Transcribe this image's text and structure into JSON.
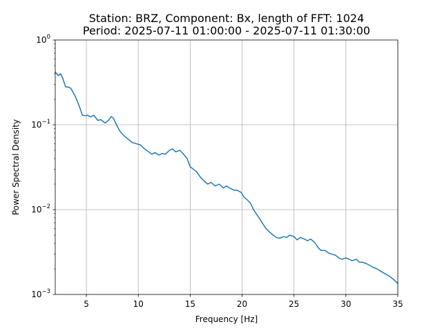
{
  "chart_data": {
    "type": "line",
    "title": [
      "Station: BRZ, Component: Bx, length of FFT: 1024",
      "Period: 2025-07-11 01:00:00 - 2025-07-11 01:30:00"
    ],
    "xlabel": "Frequency [Hz]",
    "ylabel": "Power Spectral Density",
    "xlim": [
      2.0,
      35.0
    ],
    "ylim": [
      0.001,
      1.0
    ],
    "yscale": "log",
    "grid": true,
    "line_color": "#1f77b4",
    "xticks": [
      5,
      10,
      15,
      20,
      25,
      30,
      35
    ],
    "yticks": [
      {
        "value": 0.001,
        "base": "10",
        "exp": "−3"
      },
      {
        "value": 0.01,
        "base": "10",
        "exp": "−2"
      },
      {
        "value": 0.1,
        "base": "10",
        "exp": "−1"
      },
      {
        "value": 1.0,
        "base": "10",
        "exp": "0"
      }
    ],
    "series": [
      {
        "x": [
          2.0,
          2.3,
          2.5,
          2.7,
          3.0,
          3.2,
          3.5,
          3.9,
          4.2,
          4.4,
          4.6,
          4.9,
          5.1,
          5.4,
          5.7,
          6.1,
          6.4,
          6.8,
          7.1,
          7.4,
          7.6,
          7.9,
          8.2,
          8.6,
          9.0,
          9.4,
          9.8,
          10.2,
          10.6,
          11.0,
          11.3,
          11.6,
          12.0,
          12.3,
          12.6,
          13.0,
          13.3,
          13.6,
          14.0,
          14.3,
          14.7,
          15.0,
          15.3,
          15.6,
          16.0,
          16.3,
          16.7,
          17.0,
          17.4,
          17.8,
          18.2,
          18.5,
          18.8,
          19.2,
          19.5,
          19.9,
          20.2,
          20.5,
          20.8,
          21.1,
          21.4,
          21.7,
          22.0,
          22.3,
          22.6,
          23.0,
          23.3,
          23.6,
          24.0,
          24.3,
          24.6,
          25.0,
          25.3,
          25.6,
          26.0,
          26.3,
          26.6,
          27.0,
          27.3,
          27.6,
          28.0,
          28.3,
          28.6,
          29.0,
          29.3,
          29.6,
          30.0,
          30.3,
          30.6,
          31.0,
          31.3,
          31.6,
          32.0,
          32.3,
          32.6,
          33.0,
          33.3,
          33.6,
          34.0,
          34.3,
          34.6,
          35.0
        ],
        "y": [
          0.42,
          0.38,
          0.4,
          0.36,
          0.28,
          0.28,
          0.27,
          0.22,
          0.18,
          0.155,
          0.13,
          0.128,
          0.13,
          0.124,
          0.13,
          0.113,
          0.115,
          0.105,
          0.112,
          0.125,
          0.12,
          0.1,
          0.085,
          0.075,
          0.068,
          0.062,
          0.06,
          0.058,
          0.052,
          0.048,
          0.045,
          0.047,
          0.044,
          0.046,
          0.045,
          0.05,
          0.052,
          0.048,
          0.05,
          0.046,
          0.04,
          0.032,
          0.03,
          0.028,
          0.024,
          0.022,
          0.02,
          0.021,
          0.019,
          0.02,
          0.018,
          0.019,
          0.018,
          0.017,
          0.017,
          0.016,
          0.014,
          0.013,
          0.012,
          0.01,
          0.0088,
          0.0078,
          0.0068,
          0.006,
          0.0055,
          0.005,
          0.0047,
          0.0046,
          0.0048,
          0.0047,
          0.005,
          0.0048,
          0.0044,
          0.0047,
          0.0045,
          0.0043,
          0.0045,
          0.0041,
          0.0036,
          0.0033,
          0.0033,
          0.0031,
          0.003,
          0.0029,
          0.0027,
          0.0026,
          0.0027,
          0.0026,
          0.0025,
          0.0026,
          0.0024,
          0.0024,
          0.0023,
          0.0022,
          0.0021,
          0.002,
          0.0019,
          0.0018,
          0.0017,
          0.0016,
          0.0015,
          0.00135
        ]
      }
    ]
  }
}
